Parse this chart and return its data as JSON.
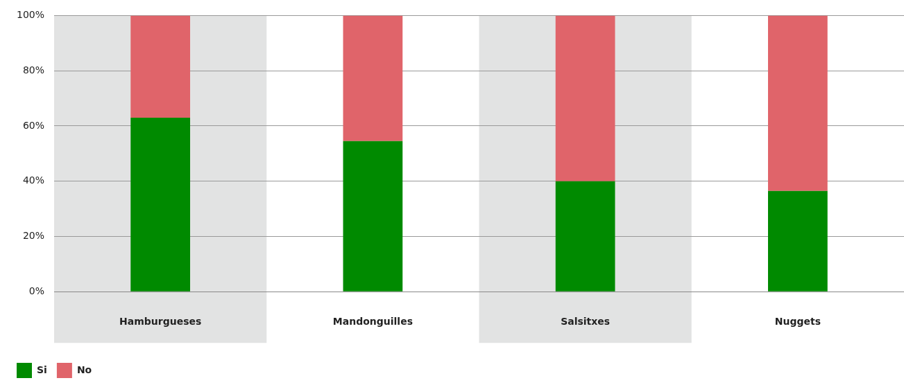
{
  "chart_data": {
    "type": "bar",
    "stacked": true,
    "categories": [
      "Hamburgueses",
      "Mandonguilles",
      "Salsitxes",
      "Nuggets"
    ],
    "series": [
      {
        "name": "Si",
        "color": "#008a00",
        "values": [
          63,
          54.5,
          40,
          36.5
        ]
      },
      {
        "name": "No",
        "color": "#e0646a",
        "values": [
          37,
          45.5,
          60,
          63.5
        ]
      }
    ],
    "ylim": [
      0,
      100
    ],
    "yticks": [
      {
        "value": 0,
        "label": "0%"
      },
      {
        "value": 20,
        "label": "20%"
      },
      {
        "value": 40,
        "label": "40%"
      },
      {
        "value": 60,
        "label": "60%"
      },
      {
        "value": 80,
        "label": "80%"
      },
      {
        "value": 100,
        "label": "100%"
      }
    ],
    "bands": [
      {
        "axis": "x",
        "from": "Hamburgueses",
        "to": "Hamburgueses",
        "color": "#e2e3e3"
      },
      {
        "axis": "x",
        "from": "Salsitxes",
        "to": "Salsitxes",
        "color": "#e2e3e3"
      }
    ],
    "grid": "y",
    "legend": "bottom left"
  }
}
